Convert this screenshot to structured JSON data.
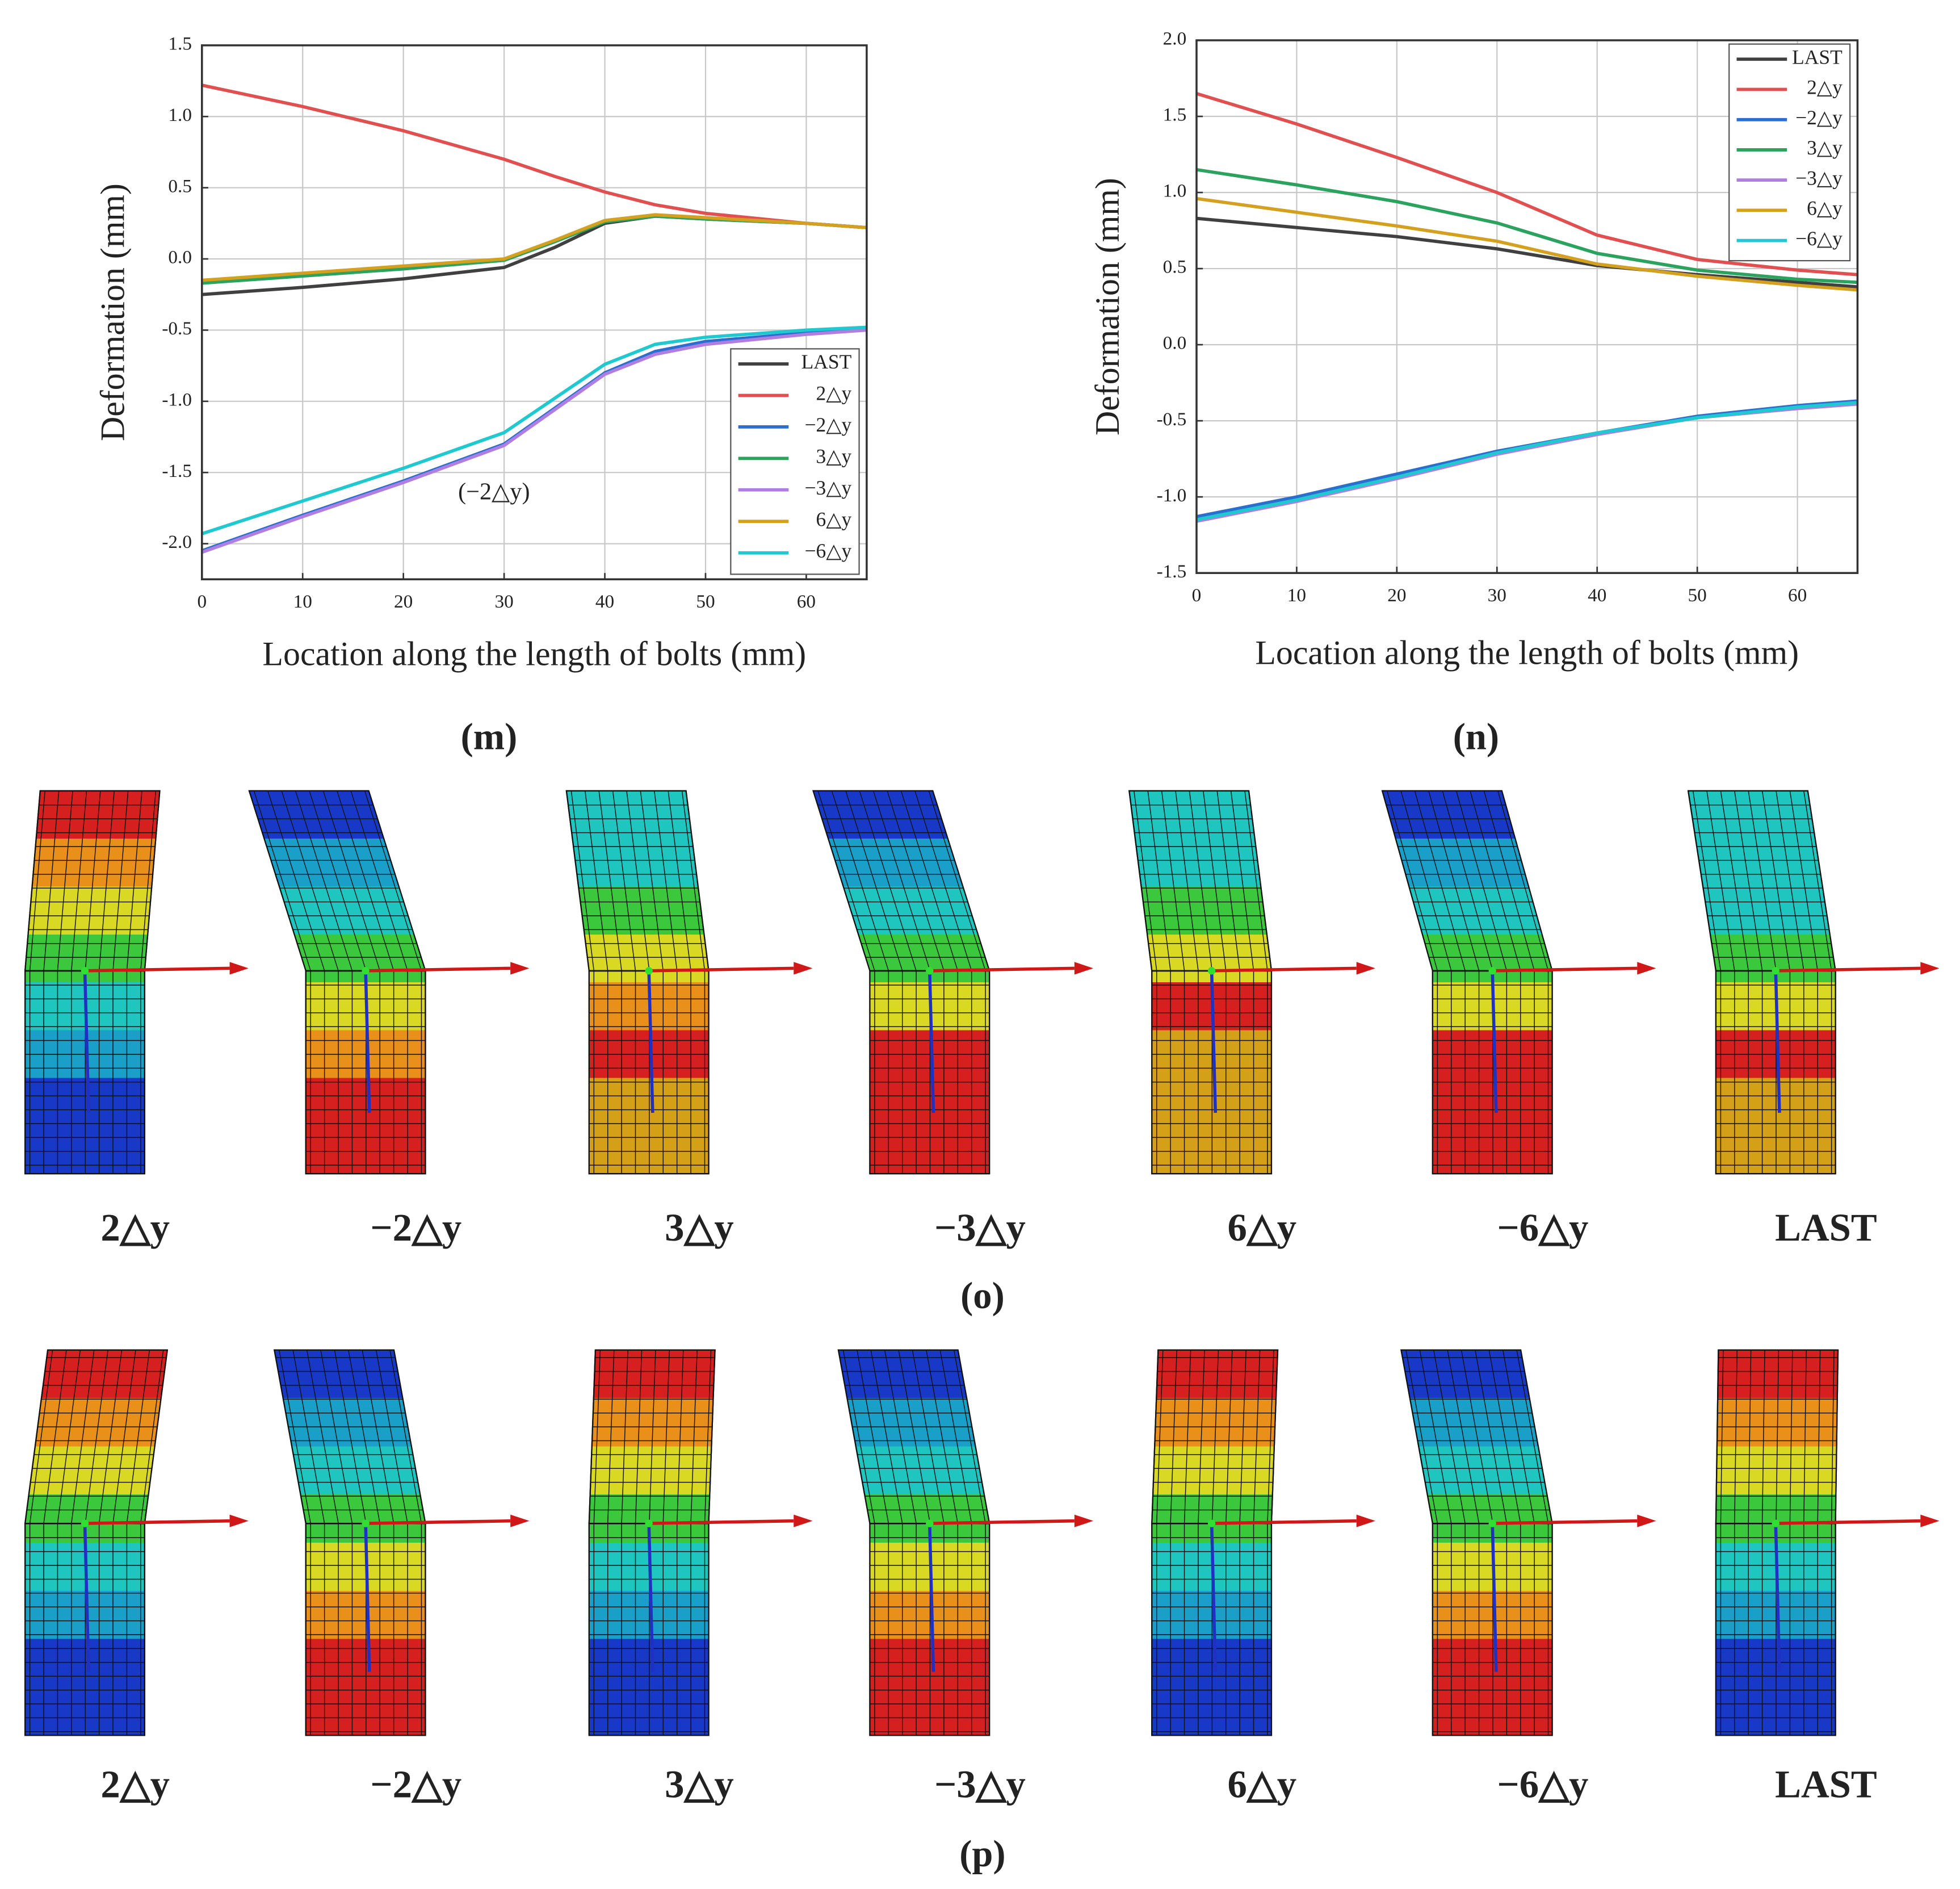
{
  "chart_data": [
    {
      "type": "line",
      "caption": "(m)",
      "xlabel": "Location along the length of bolts (mm)",
      "ylabel": "Deformation (mm)",
      "annotation": "(−2△y)",
      "x": [
        0,
        10,
        20,
        30,
        35,
        40,
        45,
        50,
        60,
        66
      ],
      "xlim": [
        0,
        66
      ],
      "xticks": [
        0,
        10,
        20,
        30,
        40,
        50,
        60
      ],
      "ylim": [
        -2.25,
        1.5
      ],
      "yticks": [
        1.5,
        {
          "value": 1,
          "label": "1.0"
        },
        0.5,
        {
          "value": 0,
          "label": "0.0"
        },
        -0.5,
        {
          "value": -1,
          "label": "-1.0"
        },
        -1.5,
        {
          "value": -2,
          "label": "-2.0"
        }
      ],
      "grid": true,
      "legend": "lower right",
      "series": [
        {
          "name": "LAST",
          "color": "#404040",
          "values": [
            -0.25,
            -0.2,
            -0.14,
            -0.06,
            0.08,
            0.25,
            0.3,
            0.28,
            0.25,
            0.22
          ]
        },
        {
          "name": "2△y",
          "color": "#e05050",
          "values": [
            1.22,
            1.07,
            0.9,
            0.7,
            0.58,
            0.47,
            0.38,
            0.32,
            0.25,
            0.22
          ]
        },
        {
          "name": "−2△y",
          "color": "#2a6fd0",
          "values": [
            -2.05,
            -1.8,
            -1.56,
            -1.3,
            -1.05,
            -0.8,
            -0.65,
            -0.58,
            -0.52,
            -0.49
          ]
        },
        {
          "name": "3△y",
          "color": "#2ca25f",
          "values": [
            -0.17,
            -0.12,
            -0.07,
            -0.01,
            0.12,
            0.26,
            0.3,
            0.28,
            0.25,
            0.22
          ]
        },
        {
          "name": "−3△y",
          "color": "#b07de0",
          "values": [
            -2.06,
            -1.81,
            -1.57,
            -1.31,
            -1.06,
            -0.81,
            -0.67,
            -0.6,
            -0.53,
            -0.5
          ]
        },
        {
          "name": "6△y",
          "color": "#d4a020",
          "values": [
            -0.15,
            -0.1,
            -0.05,
            0,
            0.13,
            0.27,
            0.31,
            0.29,
            0.25,
            0.22
          ]
        },
        {
          "name": "−6△y",
          "color": "#20c8d0",
          "values": [
            -1.93,
            -1.7,
            -1.47,
            -1.22,
            -0.98,
            -0.74,
            -0.6,
            -0.55,
            -0.5,
            -0.48
          ]
        }
      ]
    },
    {
      "type": "line",
      "caption": "(n)",
      "xlabel": "Location along the length of bolts (mm)",
      "ylabel": "Deformation (mm)",
      "x": [
        0,
        10,
        20,
        30,
        40,
        50,
        60,
        66
      ],
      "xlim": [
        0,
        66
      ],
      "xticks": [
        0,
        10,
        20,
        30,
        40,
        50,
        60
      ],
      "ylim": [
        -1.5,
        2
      ],
      "yticks": [
        {
          "value": 2,
          "label": "2.0"
        },
        1.5,
        {
          "value": 1,
          "label": "1.0"
        },
        0.5,
        {
          "value": 0,
          "label": "0.0"
        },
        -0.5,
        {
          "value": -1,
          "label": "-1.0"
        },
        -1.5
      ],
      "grid": true,
      "legend": "upper right",
      "series": [
        {
          "name": "LAST",
          "color": "#404040",
          "values": [
            0.83,
            0.77,
            0.71,
            0.63,
            0.52,
            0.46,
            0.41,
            0.38
          ]
        },
        {
          "name": "2△y",
          "color": "#e05050",
          "values": [
            1.65,
            1.45,
            1.23,
            1.0,
            0.72,
            0.56,
            0.49,
            0.46
          ]
        },
        {
          "name": "−2△y",
          "color": "#2a6fd0",
          "values": [
            -1.13,
            -1.0,
            -0.85,
            -0.7,
            -0.58,
            -0.47,
            -0.4,
            -0.37
          ]
        },
        {
          "name": "3△y",
          "color": "#2ca25f",
          "values": [
            1.15,
            1.05,
            0.94,
            0.8,
            0.6,
            0.49,
            0.43,
            0.41
          ]
        },
        {
          "name": "−3△y",
          "color": "#b07de0",
          "values": [
            -1.16,
            -1.03,
            -0.88,
            -0.72,
            -0.59,
            -0.48,
            -0.42,
            -0.39
          ]
        },
        {
          "name": "6△y",
          "color": "#d4a020",
          "values": [
            0.96,
            0.87,
            0.78,
            0.68,
            0.53,
            0.45,
            0.39,
            0.36
          ]
        },
        {
          "name": "−6△y",
          "color": "#20c8d0",
          "values": [
            -1.15,
            -1.02,
            -0.87,
            -0.71,
            -0.58,
            -0.48,
            -0.41,
            -0.38
          ]
        }
      ]
    }
  ],
  "figures": [
    {
      "caption": "(o)",
      "items": [
        "2△y",
        "−2△y",
        "3△y",
        "−3△y",
        "6△y",
        "−6△y",
        "LAST"
      ]
    },
    {
      "caption": "(p)",
      "items": [
        "2△y",
        "−2△y",
        "3△y",
        "−3△y",
        "6△y",
        "−6△y",
        "LAST"
      ]
    }
  ]
}
